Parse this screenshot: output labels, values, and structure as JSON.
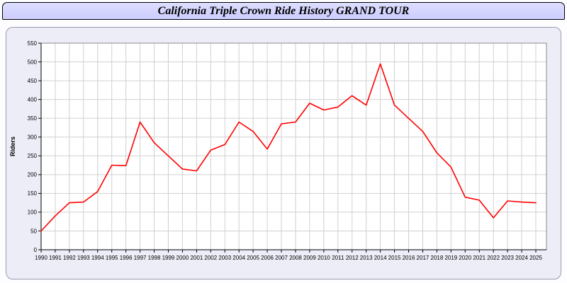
{
  "window": {
    "title": "California Triple Crown Ride History GRAND TOUR"
  },
  "colors": {
    "line": "#ff0000",
    "titlebar_bg": "#ccccff",
    "panel_bg": "#ededf8",
    "plot_bg": "#ffffff",
    "gridline": "#d0d0d0",
    "axis": "#000000"
  },
  "chart_data": {
    "type": "line",
    "title": "California Triple Crown Ride History GRAND TOUR",
    "xlabel": "",
    "ylabel": "Riders",
    "x": [
      1990,
      1991,
      1992,
      1993,
      1994,
      1995,
      1996,
      1997,
      1998,
      1999,
      2000,
      2001,
      2002,
      2003,
      2004,
      2005,
      2006,
      2007,
      2008,
      2009,
      2010,
      2011,
      2012,
      2013,
      2014,
      2015,
      2016,
      2017,
      2018,
      2019,
      2020,
      2021,
      2022,
      2023,
      2024,
      2025
    ],
    "series": [
      {
        "name": "Riders",
        "color": "#ff0000",
        "values": [
          50,
          90,
          125,
          127,
          155,
          225,
          224,
          340,
          285,
          250,
          215,
          210,
          265,
          280,
          340,
          315,
          268,
          335,
          340,
          390,
          372,
          380,
          410,
          385,
          495,
          385,
          350,
          315,
          258,
          220,
          140,
          132,
          85,
          130,
          127,
          125
        ]
      }
    ],
    "ylim": [
      0,
      550
    ],
    "ytick_step": 50,
    "grid": true,
    "legend": "none"
  }
}
